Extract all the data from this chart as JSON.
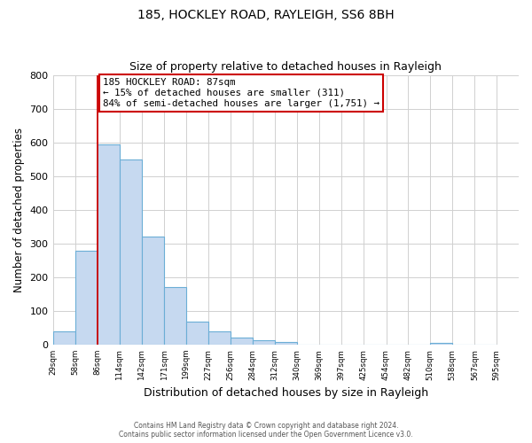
{
  "title1": "185, HOCKLEY ROAD, RAYLEIGH, SS6 8BH",
  "title2": "Size of property relative to detached houses in Rayleigh",
  "xlabel": "Distribution of detached houses by size in Rayleigh",
  "ylabel": "Number of detached properties",
  "bar_left_edges": [
    29,
    58,
    86,
    114,
    142,
    171,
    199,
    227,
    256,
    284,
    312,
    340,
    369,
    397,
    425,
    454,
    482,
    510,
    538,
    567
  ],
  "bar_heights": [
    38,
    278,
    593,
    549,
    321,
    170,
    67,
    38,
    22,
    12,
    8,
    0,
    0,
    0,
    0,
    0,
    0,
    6,
    0,
    0
  ],
  "bar_widths": [
    29,
    28,
    28,
    28,
    29,
    28,
    28,
    29,
    28,
    28,
    28,
    29,
    28,
    28,
    29,
    29,
    28,
    28,
    29,
    28
  ],
  "tick_labels": [
    "29sqm",
    "58sqm",
    "86sqm",
    "114sqm",
    "142sqm",
    "171sqm",
    "199sqm",
    "227sqm",
    "256sqm",
    "284sqm",
    "312sqm",
    "340sqm",
    "369sqm",
    "397sqm",
    "425sqm",
    "454sqm",
    "482sqm",
    "510sqm",
    "538sqm",
    "567sqm",
    "595sqm"
  ],
  "bar_color": "#c6d9f0",
  "bar_edge_color": "#6baed6",
  "property_line_x": 86,
  "property_line_color": "#cc0000",
  "ylim": [
    0,
    800
  ],
  "yticks": [
    0,
    100,
    200,
    300,
    400,
    500,
    600,
    700,
    800
  ],
  "annotation_lines": [
    "185 HOCKLEY ROAD: 87sqm",
    "← 15% of detached houses are smaller (311)",
    "84% of semi-detached houses are larger (1,751) →"
  ],
  "footer1": "Contains HM Land Registry data © Crown copyright and database right 2024.",
  "footer2": "Contains public sector information licensed under the Open Government Licence v3.0.",
  "background_color": "#ffffff",
  "grid_color": "#d0d0d0"
}
